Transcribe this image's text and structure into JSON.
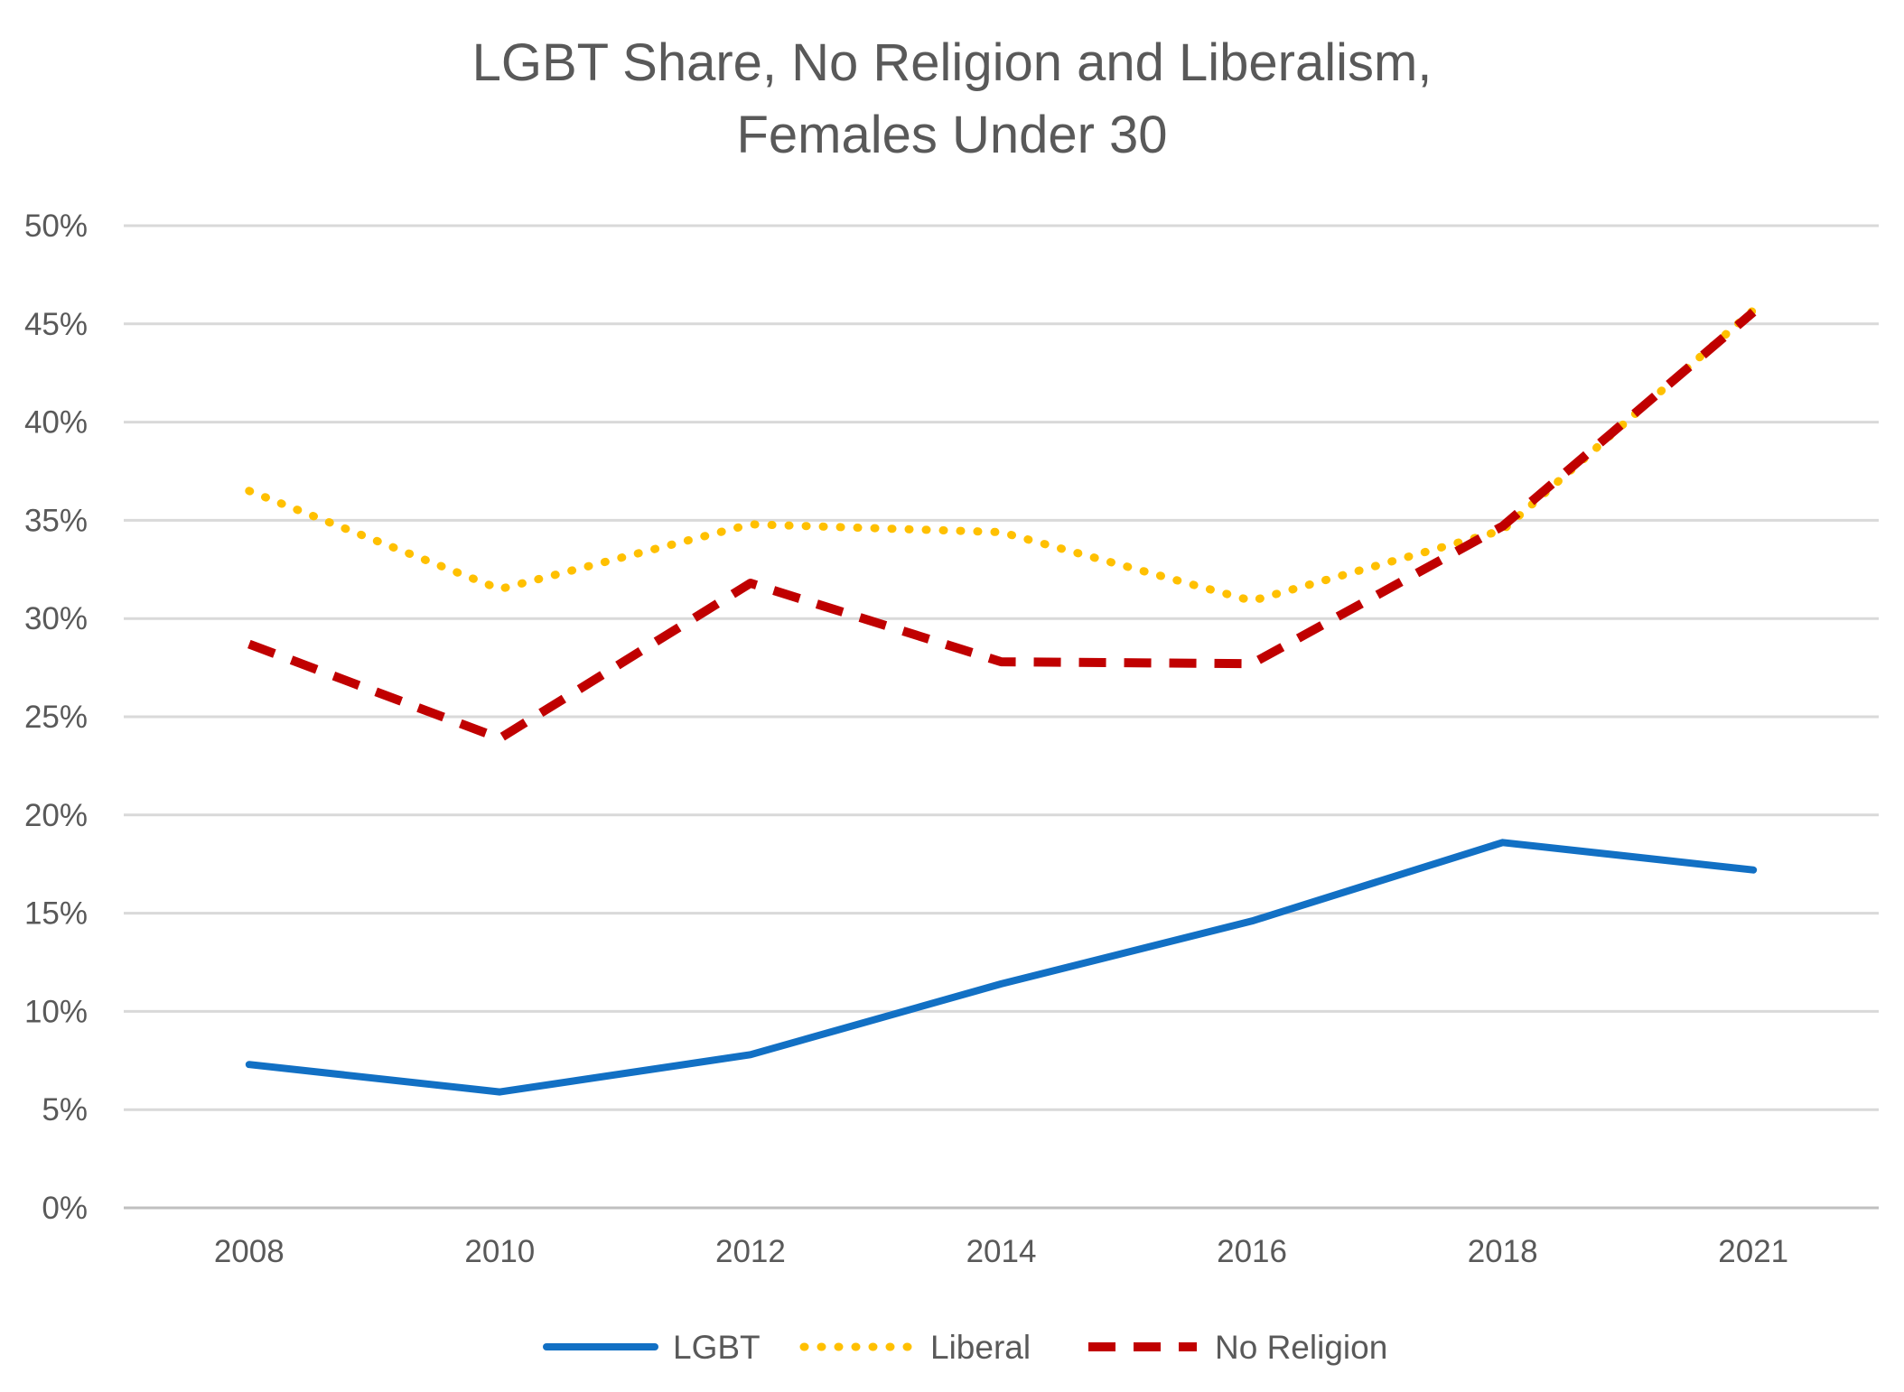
{
  "chart_data": {
    "type": "line",
    "title_lines": [
      "LGBT Share, No Religion and Liberalism,",
      "Females Under 30"
    ],
    "categories": [
      "2008",
      "2010",
      "2012",
      "2014",
      "2016",
      "2018",
      "2021"
    ],
    "y_ticks": [
      "0%",
      "5%",
      "10%",
      "15%",
      "20%",
      "25%",
      "30%",
      "35%",
      "40%",
      "45%",
      "50%"
    ],
    "ylim": [
      0,
      50
    ],
    "grid": true,
    "legend_position": "bottom",
    "series": [
      {
        "name": "LGBT",
        "values": [
          7.3,
          5.9,
          7.8,
          11.4,
          14.6,
          18.6,
          17.2
        ],
        "color": "#1270c4",
        "style": "solid"
      },
      {
        "name": "Liberal",
        "values": [
          36.5,
          31.5,
          34.8,
          34.4,
          30.9,
          34.5,
          45.7
        ],
        "color": "#ffc000",
        "style": "dotted"
      },
      {
        "name": "No Religion",
        "values": [
          28.7,
          23.9,
          31.8,
          27.8,
          27.7,
          34.7,
          45.6
        ],
        "color": "#c00000",
        "style": "dashed"
      }
    ]
  }
}
